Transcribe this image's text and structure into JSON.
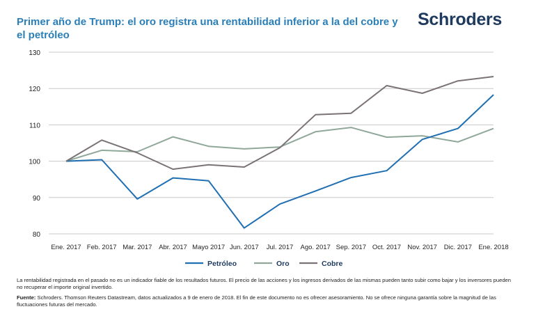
{
  "title": "Primer año de Trump: el oro registra una rentabilidad inferior a la del cobre y el petróleo",
  "brand": "Schroders",
  "chart_data": {
    "type": "line",
    "categories": [
      "Ene. 2017",
      "Feb. 2017",
      "Mar. 2017",
      "Abr. 2017",
      "Mayo 2017",
      "Jun. 2017",
      "Jul. 2017",
      "Ago. 2017",
      "Sep. 2017",
      "Oct. 2017",
      "Nov. 2017",
      "Dic. 2017",
      "Ene. 2018"
    ],
    "series": [
      {
        "name": "Petróleo",
        "color": "#1f6fb2",
        "values": [
          100,
          100.4,
          89.6,
          95.4,
          94.6,
          81.6,
          88.2,
          91.8,
          95.5,
          97.4,
          106,
          109,
          118.3
        ]
      },
      {
        "name": "Oro",
        "color": "#8fa89a",
        "values": [
          100,
          103,
          102.6,
          106.7,
          104.1,
          103.4,
          103.9,
          108.1,
          109.3,
          106.6,
          107,
          105.3,
          109
        ]
      },
      {
        "name": "Cobre",
        "color": "#7a7275",
        "values": [
          100,
          105.8,
          102.3,
          97.8,
          99,
          98.4,
          103.7,
          112.8,
          113.2,
          120.8,
          118.7,
          122.1,
          123.3
        ]
      }
    ],
    "ylim": [
      80,
      130
    ],
    "yticks": [
      80,
      90,
      100,
      110,
      120,
      130
    ],
    "grid": true,
    "legend": "bottom"
  },
  "footnote": {
    "disclaimer": "La rentabilidad registrada en el pasado no es un indicador fiable de los resultados futuros. El precio de las acciones y los ingresos derivados de las mismas pueden tanto subir como bajar y los inversores pueden no recuperar el importe original invertido.",
    "source_label": "Fuente:",
    "source_text": " Schroders. Thomson Reuters Datastream, datos actualizados a 9 de enero de 2018. El fin de este documento no es ofrecer asesoramiento. No se ofrece ninguna garantía sobre la magnitud de las fluctuaciones futuras del mercado."
  }
}
